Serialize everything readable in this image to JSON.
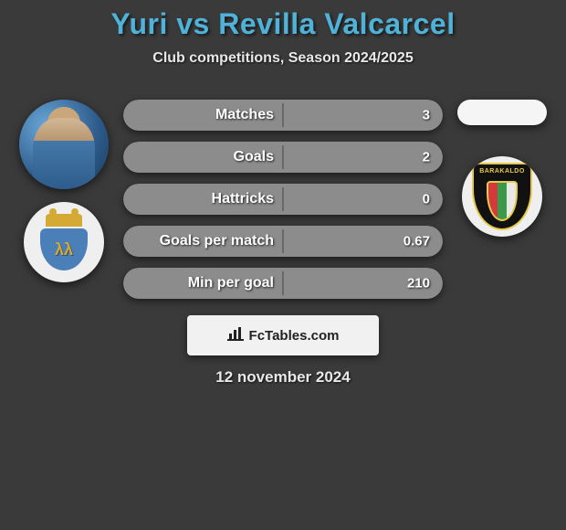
{
  "title": "Yuri vs Revilla Valcarcel",
  "subtitle": "Club competitions, Season 2024/2025",
  "title_color": "#4fb3d9",
  "subtitle_color": "#e8e8e8",
  "background_color": "#3a3a3a",
  "left": {
    "player_name": "Yuri",
    "club_name": "Ponferradina",
    "club_badge_text": "λλ"
  },
  "right": {
    "player_name": "Revilla Valcarcel",
    "club_name": "Barakaldo",
    "club_band": "BARAKALDO"
  },
  "stats": [
    {
      "label": "Matches",
      "left_val": "",
      "right_val": "3",
      "left_color": "#8c8c8c",
      "right_color": "#8c8c8c"
    },
    {
      "label": "Goals",
      "left_val": "",
      "right_val": "2",
      "left_color": "#8c8c8c",
      "right_color": "#8c8c8c"
    },
    {
      "label": "Hattricks",
      "left_val": "",
      "right_val": "0",
      "left_color": "#8c8c8c",
      "right_color": "#8c8c8c"
    },
    {
      "label": "Goals per match",
      "left_val": "",
      "right_val": "0.67",
      "left_color": "#8c8c8c",
      "right_color": "#8c8c8c"
    },
    {
      "label": "Min per goal",
      "left_val": "",
      "right_val": "210",
      "left_color": "#8c8c8c",
      "right_color": "#8c8c8c"
    }
  ],
  "stat_bar": {
    "height": 34,
    "radius": 17,
    "label_fontsize": 16,
    "value_fontsize": 15,
    "text_color": "#ffffff"
  },
  "footer": {
    "site": "FcTables.com",
    "icon": "bar-chart-icon",
    "date": "12 november 2024",
    "box_bg": "#f1f1f1",
    "text_color": "#222222"
  }
}
